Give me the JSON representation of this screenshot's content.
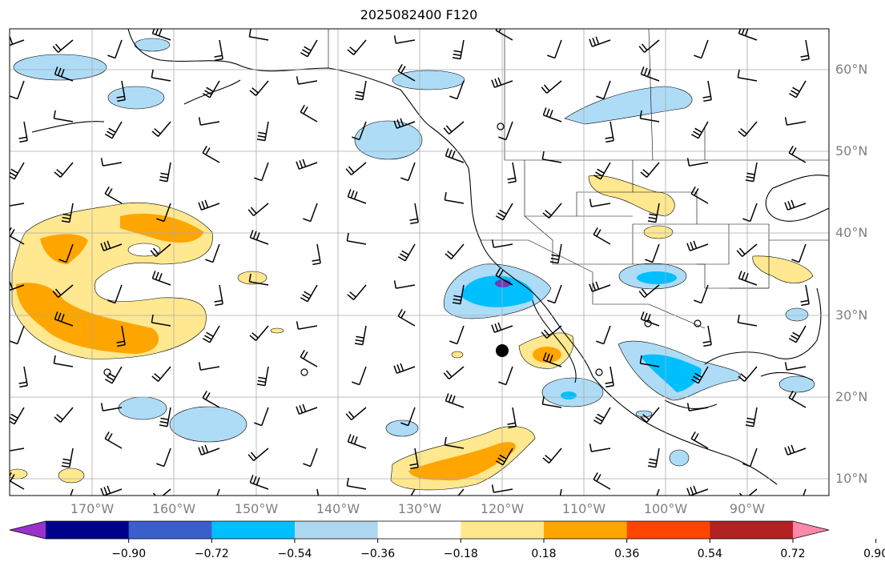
{
  "title": "2025082400 F120",
  "lon_ticks": [
    "170°W",
    "160°W",
    "150°W",
    "140°W",
    "130°W",
    "120°W",
    "110°W",
    "100°W",
    "90°W"
  ],
  "lat_ticks": [
    "60°N",
    "50°N",
    "40°N",
    "30°N",
    "20°N",
    "10°N"
  ],
  "colorbar": {
    "ticks": [
      "−0.90",
      "−0.72",
      "−0.54",
      "−0.36",
      "−0.18",
      "0.18",
      "0.36",
      "0.54",
      "0.72",
      "0.90"
    ],
    "colors": [
      "#9932cc",
      "#00008b",
      "#3a5fcd",
      "#00bfff",
      "#add8f0",
      "#ffffff",
      "#ffe78c",
      "#ffa500",
      "#ff4500",
      "#b22222",
      "#ff88aa"
    ]
  },
  "fill_colors": {
    "light_blue": "#aedcf7",
    "blue": "#00bfff",
    "purple": "#6a3db8",
    "light_yellow": "#ffe88f",
    "orange": "#ffa500"
  }
}
